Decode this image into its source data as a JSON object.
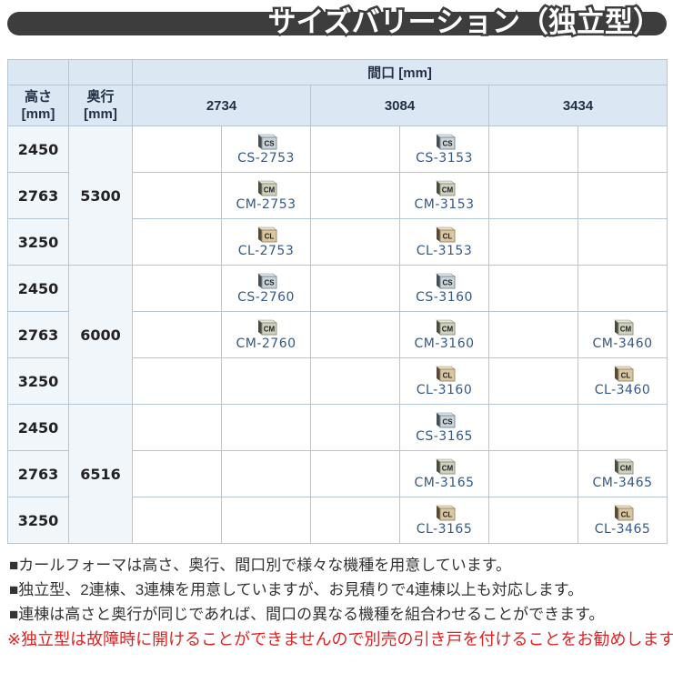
{
  "title": "サイズバリーション（独立型）",
  "table": {
    "span_header": "間口 [mm]",
    "height_header": "高さ\n[mm]",
    "depth_header": "奥行\n[mm]",
    "col_headers": [
      "2734",
      "3084",
      "3434"
    ],
    "groups": [
      {
        "depth": "5300",
        "rows": [
          {
            "height": "2450",
            "cells": [
              null,
              {
                "series": "CS",
                "code": "CS-2753"
              },
              null,
              {
                "series": "CS",
                "code": "CS-3153"
              },
              null,
              null
            ]
          },
          {
            "height": "2763",
            "cells": [
              null,
              {
                "series": "CM",
                "code": "CM-2753"
              },
              null,
              {
                "series": "CM",
                "code": "CM-3153"
              },
              null,
              null
            ]
          },
          {
            "height": "3250",
            "cells": [
              null,
              {
                "series": "CL",
                "code": "CL-2753"
              },
              null,
              {
                "series": "CL",
                "code": "CL-3153"
              },
              null,
              null
            ]
          }
        ]
      },
      {
        "depth": "6000",
        "rows": [
          {
            "height": "2450",
            "cells": [
              null,
              {
                "series": "CS",
                "code": "CS-2760"
              },
              null,
              {
                "series": "CS",
                "code": "CS-3160"
              },
              null,
              null
            ]
          },
          {
            "height": "2763",
            "cells": [
              null,
              {
                "series": "CM",
                "code": "CM-2760"
              },
              null,
              {
                "series": "CM",
                "code": "CM-3160"
              },
              null,
              {
                "series": "CM",
                "code": "CM-3460"
              }
            ]
          },
          {
            "height": "3250",
            "cells": [
              null,
              null,
              null,
              {
                "series": "CL",
                "code": "CL-3160"
              },
              null,
              {
                "series": "CL",
                "code": "CL-3460"
              }
            ]
          }
        ]
      },
      {
        "depth": "6516",
        "rows": [
          {
            "height": "2450",
            "cells": [
              null,
              null,
              null,
              {
                "series": "CS",
                "code": "CS-3165"
              },
              null,
              null
            ]
          },
          {
            "height": "2763",
            "cells": [
              null,
              null,
              null,
              {
                "series": "CM",
                "code": "CM-3165"
              },
              null,
              {
                "series": "CM",
                "code": "CM-3465"
              }
            ]
          },
          {
            "height": "3250",
            "cells": [
              null,
              null,
              null,
              {
                "series": "CL",
                "code": "CL-3165"
              },
              null,
              {
                "series": "CL",
                "code": "CL-3465"
              }
            ]
          }
        ]
      }
    ]
  },
  "series_styles": {
    "CS": {
      "label": "CS",
      "face": "#c9d3da",
      "edge": "#7f8e9a",
      "side": "#454e55",
      "top": "#dfe6ea"
    },
    "CM": {
      "label": "CM",
      "face": "#cdd1bd",
      "edge": "#8f9680",
      "side": "#474b40",
      "top": "#e3e5d6"
    },
    "CL": {
      "label": "CL",
      "face": "#d8c6a4",
      "edge": "#a18c68",
      "side": "#55493a",
      "top": "#e8dfc9"
    }
  },
  "colors": {
    "title_bar": "#3d3d3d",
    "header_bg": "#dbe7f3",
    "leftcol_bg": "#f1f6fa",
    "border": "#b3c6d6",
    "code_text": "#33588a",
    "note_text": "#333333",
    "warning_text": "#e02222"
  },
  "notes": [
    "■カールフォーマは高さ、奥行、間口別で様々な機種を用意しています。",
    "■独立型、2連棟、3連棟を用意していますが、お見積りで4連棟以上も対応します。",
    "■連棟は高さと奥行が同じであれば、間口の異なる機種を組合わせることができます。"
  ],
  "warning": "※独立型は故障時に開けることができませんので別売の引き戸を付けることをお勧めします。"
}
